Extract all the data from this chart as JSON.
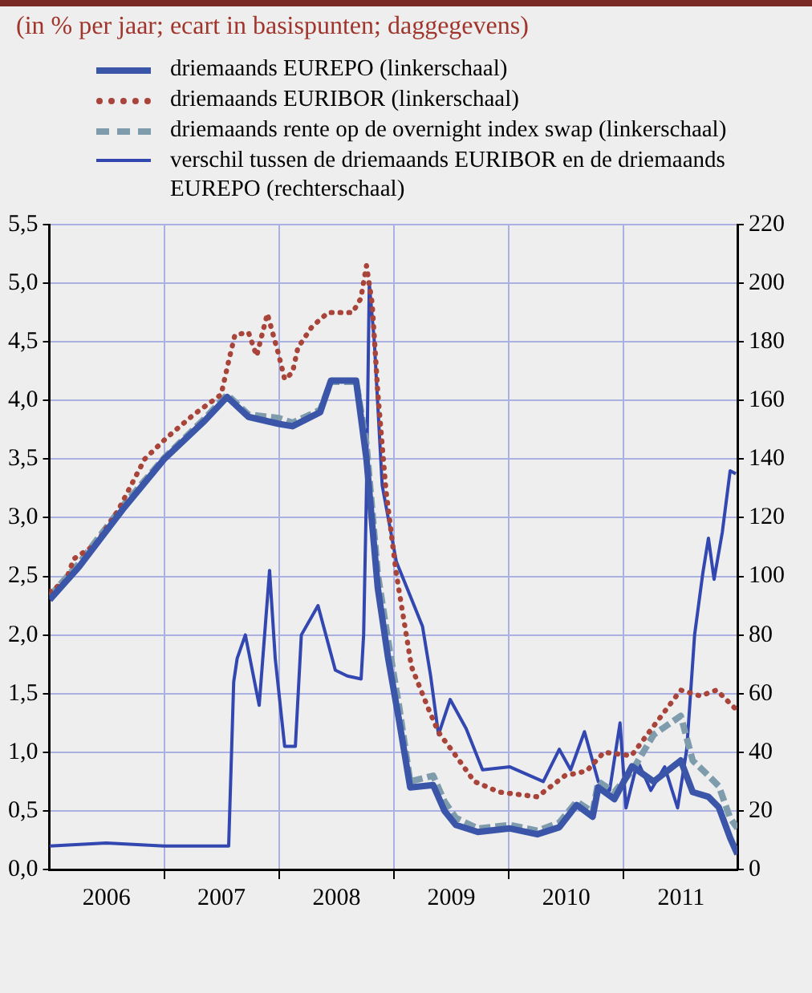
{
  "chart_data": {
    "type": "line",
    "title": "(in % per jaar; ecart in basispunten; daggegevens)",
    "xlim": [
      "2006-01-01",
      "2011-12-28"
    ],
    "xticks": [
      {
        "value": "2006-07-02",
        "label": "2006"
      },
      {
        "value": "2007-01-01",
        "label": null
      },
      {
        "value": "2007-07-02",
        "label": "2007"
      },
      {
        "value": "2008-01-01",
        "label": null
      },
      {
        "value": "2008-07-02",
        "label": "2008"
      },
      {
        "value": "2009-01-01",
        "label": null
      },
      {
        "value": "2009-07-02",
        "label": "2009"
      },
      {
        "value": "2010-01-01",
        "label": null
      },
      {
        "value": "2010-07-02",
        "label": "2010"
      },
      {
        "value": "2011-01-01",
        "label": null
      },
      {
        "value": "2011-07-02",
        "label": "2011"
      }
    ],
    "ylim": [
      0,
      5.5
    ],
    "yticks": [
      {
        "value": 0,
        "label": "0,0"
      },
      {
        "value": 0.5,
        "label": "0,5"
      },
      {
        "value": 1,
        "label": "1,0"
      },
      {
        "value": 1.5,
        "label": "1,5"
      },
      {
        "value": 2,
        "label": "2,0"
      },
      {
        "value": 2.5,
        "label": "2,5"
      },
      {
        "value": 3,
        "label": "3,0"
      },
      {
        "value": 3.5,
        "label": "3,5"
      },
      {
        "value": 4,
        "label": "4,0"
      },
      {
        "value": 4.5,
        "label": "4,5"
      },
      {
        "value": 5,
        "label": "5,0"
      },
      {
        "value": 5.5,
        "label": "5,5"
      }
    ],
    "y2lim": [
      0,
      220
    ],
    "y2ticks": [
      0,
      20,
      40,
      60,
      80,
      100,
      120,
      140,
      160,
      180,
      200,
      220
    ],
    "grid": true,
    "legend": "top",
    "marker": "none",
    "series": [
      {
        "name": "driemaands EUREPO (linkerschaal)",
        "color": "#3b56a8",
        "line_style": "solid",
        "x": [
          "2006-01-02",
          "2006-04-05",
          "2006-08-22",
          "2007-01-01",
          "2007-05-11",
          "2007-07-20",
          "2007-09-26",
          "2008-01-01",
          "2008-02-13",
          "2008-05-11",
          "2008-06-14",
          "2008-09-02",
          "2008-10-05",
          "2008-11-10",
          "2008-12-13",
          "2009-01-18",
          "2009-02-21",
          "2009-05-05",
          "2009-06-10",
          "2009-07-16",
          "2009-09-24",
          "2010-01-04",
          "2010-04-01",
          "2010-06-10",
          "2010-08-04",
          "2010-09-24",
          "2010-10-12",
          "2010-12-02",
          "2011-01-27",
          "2011-04-06",
          "2011-07-01",
          "2011-08-08",
          "2011-09-27",
          "2011-10-30",
          "2011-12-05",
          "2011-12-28"
        ],
        "values": [
          2.3,
          2.58,
          3.07,
          3.5,
          3.83,
          4.03,
          3.86,
          3.8,
          3.78,
          3.9,
          4.17,
          4.17,
          3.5,
          2.4,
          1.8,
          1.25,
          0.7,
          0.72,
          0.5,
          0.38,
          0.32,
          0.35,
          0.3,
          0.36,
          0.55,
          0.45,
          0.7,
          0.6,
          0.88,
          0.75,
          0.93,
          0.66,
          0.62,
          0.53,
          0.27,
          0.13
        ]
      },
      {
        "name": "driemaands EURIBOR (linkerschaal)",
        "color": "#a8443a",
        "line_style": "dotted",
        "x": [
          "2006-01-02",
          "2006-02-22",
          "2006-03-20",
          "2006-05-27",
          "2006-08-07",
          "2006-10-31",
          "2007-01-08",
          "2007-04-05",
          "2007-07-01",
          "2007-07-27",
          "2007-08-14",
          "2007-09-26",
          "2007-10-22",
          "2007-11-25",
          "2008-01-01",
          "2008-01-19",
          "2008-02-13",
          "2008-03-01",
          "2008-04-15",
          "2008-06-05",
          "2008-08-22",
          "2008-09-17",
          "2008-10-05",
          "2008-10-23",
          "2008-11-10",
          "2008-12-06",
          "2009-01-08",
          "2009-02-25",
          "2009-04-20",
          "2009-05-22",
          "2009-07-16",
          "2009-09-13",
          "2009-12-01",
          "2010-04-01",
          "2010-06-28",
          "2010-09-05",
          "2010-10-30",
          "2011-01-25",
          "2011-04-22",
          "2011-07-01",
          "2011-09-01",
          "2011-10-23",
          "2011-12-22"
        ],
        "values": [
          2.37,
          2.46,
          2.65,
          2.77,
          3.06,
          3.5,
          3.68,
          3.88,
          4.05,
          4.36,
          4.56,
          4.58,
          4.38,
          4.74,
          4.38,
          4.18,
          4.24,
          4.45,
          4.63,
          4.75,
          4.75,
          4.87,
          5.15,
          4.83,
          4.07,
          3.23,
          2.52,
          1.73,
          1.37,
          1.17,
          0.97,
          0.75,
          0.66,
          0.62,
          0.8,
          0.84,
          1.0,
          0.97,
          1.28,
          1.53,
          1.48,
          1.53,
          1.37
        ]
      },
      {
        "name": "driemaands rente op de overnight index swap (linkerschaal)",
        "color": "#7f9cac",
        "line_style": "dashed",
        "x": [
          "2006-01-02",
          "2006-04-05",
          "2006-08-22",
          "2007-01-01",
          "2007-05-11",
          "2007-07-20",
          "2007-09-26",
          "2008-01-01",
          "2008-02-13",
          "2008-05-11",
          "2008-06-14",
          "2008-09-02",
          "2008-10-05",
          "2008-11-10",
          "2008-12-13",
          "2009-01-18",
          "2009-02-21",
          "2009-05-05",
          "2009-06-10",
          "2009-07-16",
          "2009-09-24",
          "2010-01-04",
          "2010-04-01",
          "2010-06-10",
          "2010-08-04",
          "2010-09-24",
          "2010-10-12",
          "2010-12-02",
          "2011-01-27",
          "2011-04-06",
          "2011-07-01",
          "2011-08-08",
          "2011-09-27",
          "2011-10-30",
          "2011-12-05",
          "2011-12-28"
        ],
        "values": [
          2.33,
          2.61,
          3.1,
          3.51,
          3.85,
          4.05,
          3.88,
          3.85,
          3.81,
          3.92,
          4.16,
          4.16,
          3.63,
          2.52,
          1.95,
          1.37,
          0.75,
          0.8,
          0.58,
          0.44,
          0.35,
          0.38,
          0.33,
          0.4,
          0.58,
          0.49,
          0.75,
          0.66,
          0.84,
          1.15,
          1.31,
          0.93,
          0.8,
          0.71,
          0.44,
          0.35
        ]
      },
      {
        "name": "verschil tussen de driemaands EURIBOR en de driemaands EUREPO (rechterschaal)",
        "color": "#3347b0",
        "line_style": "solid",
        "axis": "y2",
        "x": [
          "2006-01-02",
          "2006-07-01",
          "2007-01-01",
          "2007-07-25",
          "2007-08-10",
          "2007-08-21",
          "2007-09-16",
          "2007-10-30",
          "2007-12-02",
          "2007-12-20",
          "2008-01-19",
          "2008-02-22",
          "2008-03-12",
          "2008-05-04",
          "2008-06-28",
          "2008-08-05",
          "2008-09-18",
          "2008-09-26",
          "2008-10-05",
          "2008-10-14",
          "2008-10-30",
          "2008-11-24",
          "2009-01-08",
          "2009-04-01",
          "2009-04-27",
          "2009-05-22",
          "2009-06-28",
          "2009-08-18",
          "2009-10-09",
          "2010-01-04",
          "2010-04-20",
          "2010-06-10",
          "2010-07-16",
          "2010-08-29",
          "2010-10-12",
          "2010-11-17",
          "2010-12-20",
          "2011-01-08",
          "2011-02-14",
          "2011-03-28",
          "2011-05-11",
          "2011-06-21",
          "2011-07-20",
          "2011-08-14",
          "2011-09-09",
          "2011-09-27",
          "2011-10-15",
          "2011-11-10",
          "2011-12-05",
          "2011-12-23"
        ],
        "values": [
          8,
          9,
          8,
          8,
          64,
          72,
          80,
          56,
          102,
          72,
          42,
          42,
          80,
          90,
          68,
          66,
          65,
          80,
          129,
          200,
          180,
          131,
          105,
          83,
          66,
          46,
          58,
          48,
          34,
          35,
          30,
          41,
          34,
          47,
          30,
          27,
          50,
          21,
          37,
          27,
          35,
          21,
          41,
          80,
          101,
          113,
          99,
          115,
          136,
          135
        ]
      }
    ]
  }
}
